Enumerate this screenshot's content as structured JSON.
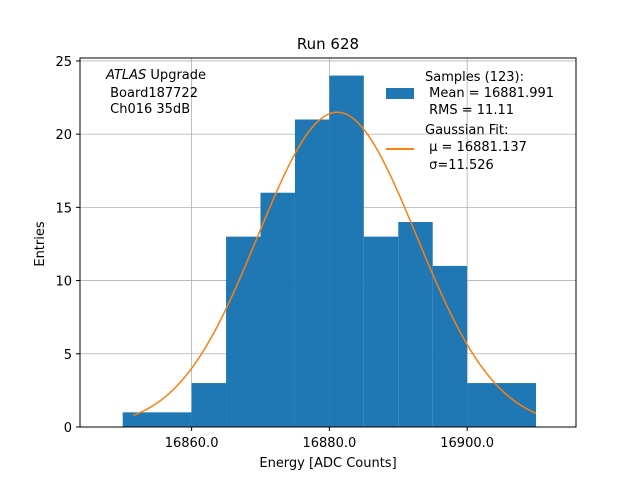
{
  "chart_data": {
    "type": "bar",
    "subtype": "histogram",
    "title": "Run 628",
    "xlabel": "Energy [ADC Counts]",
    "ylabel": "Entries",
    "xlim": [
      16843.8,
      17116.2
    ],
    "ylim": [
      0,
      25.2
    ],
    "x_ticks": [
      16860.0,
      16880.0,
      16900.0
    ],
    "x_tick_labels": [
      "16860.0",
      "16880.0",
      "16900.0"
    ],
    "y_ticks": [
      0,
      5,
      10,
      15,
      20,
      25
    ],
    "y_tick_labels": [
      "0",
      "5",
      "10",
      "15",
      "20",
      "25"
    ],
    "grid": true,
    "bins": [
      {
        "x0": 16850,
        "x1": 16860,
        "count": 1
      },
      {
        "x0": 16860,
        "x1": 16865,
        "count": 3
      },
      {
        "x0": 16865,
        "x1": 16870,
        "count": 13
      },
      {
        "x0": 16870,
        "x1": 16875,
        "count": 16
      },
      {
        "x0": 16875,
        "x1": 16880,
        "count": 21
      },
      {
        "x0": 16880,
        "x1": 16885,
        "count": 24
      },
      {
        "x0": 16885,
        "x1": 16890,
        "count": 13
      },
      {
        "x0": 16890,
        "x1": 16895,
        "count": 14
      },
      {
        "x0": 16895,
        "x1": 16900,
        "count": 11
      },
      {
        "x0": 16900,
        "x1": 16910,
        "count": 3
      }
    ],
    "fit": {
      "type": "gaussian",
      "mu": 16881.137,
      "sigma": 11.526,
      "amplitude": 21.5,
      "x_range": [
        16851.5,
        16910
      ]
    },
    "colors": {
      "histogram": "#1f77b4",
      "fit": "#ff7f0e",
      "grid": "#b0b0b0"
    },
    "legend": {
      "placement": "top-right",
      "entries": [
        {
          "lines": [
            "Samples (123):",
            " Mean = 16881.991",
            " RMS = 11.11"
          ]
        },
        {
          "lines": [
            "Gaussian Fit:",
            " μ = 16881.137",
            " σ=11.526"
          ]
        }
      ]
    },
    "annotation": {
      "lines": [
        "ATLAS Upgrade",
        " Board187722",
        " Ch016 35dB"
      ]
    }
  }
}
